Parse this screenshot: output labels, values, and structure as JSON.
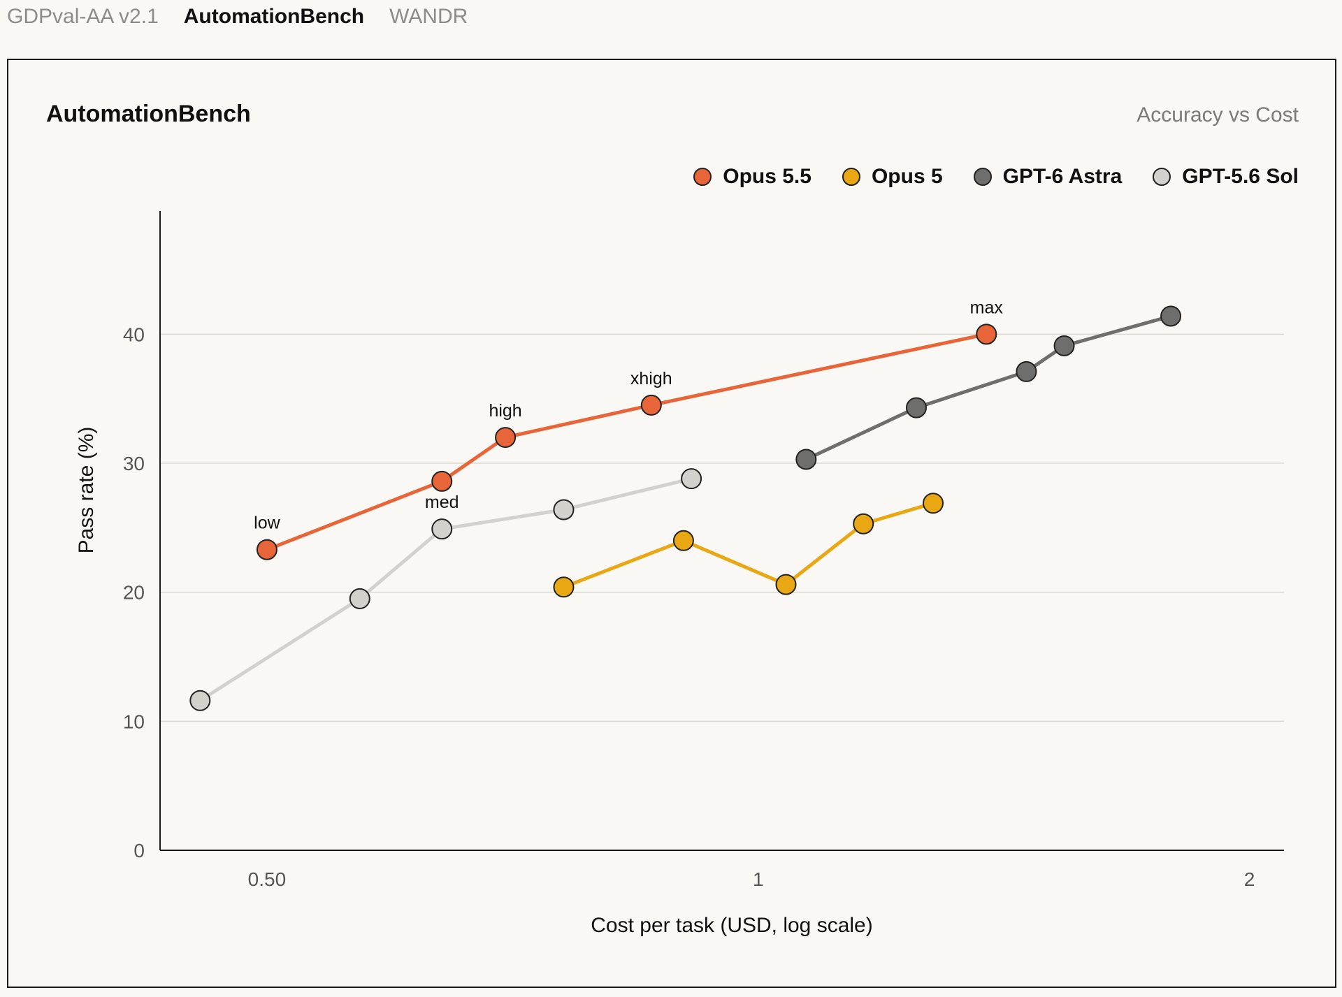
{
  "tabs": [
    {
      "label": "GDPval-AA v2.1",
      "active": false
    },
    {
      "label": "AutomationBench",
      "active": true
    },
    {
      "label": "WANDR",
      "active": false
    }
  ],
  "card": {
    "title": "AutomationBench",
    "subtitle": "Accuracy vs Cost"
  },
  "chart_data": {
    "type": "line",
    "xlabel": "Cost per task (USD, log scale)",
    "ylabel": "Pass rate (%)",
    "xscale": "log",
    "xlim": [
      0.43,
      2.1
    ],
    "ylim": [
      0,
      45
    ],
    "xticks": [
      {
        "value": 0.5,
        "label": "0.50"
      },
      {
        "value": 1,
        "label": "1"
      },
      {
        "value": 2,
        "label": "2"
      }
    ],
    "yticks": [
      0,
      10,
      20,
      30,
      40
    ],
    "grid": "horizontal",
    "legend_position": "top-right",
    "series": [
      {
        "name": "Opus 5.5",
        "color": "#e8653a",
        "points": [
          {
            "x": 0.5,
            "y": 23.3,
            "label": "low"
          },
          {
            "x": 0.64,
            "y": 28.6,
            "label": ""
          },
          {
            "x": 0.7,
            "y": 32.0,
            "label": "high"
          },
          {
            "x": 0.86,
            "y": 34.5,
            "label": "xhigh"
          },
          {
            "x": 1.38,
            "y": 40.0,
            "label": "max"
          }
        ]
      },
      {
        "name": "Opus 5",
        "color": "#eaa714",
        "points": [
          {
            "x": 0.76,
            "y": 20.4,
            "label": ""
          },
          {
            "x": 0.9,
            "y": 24.0,
            "label": ""
          },
          {
            "x": 1.04,
            "y": 20.6,
            "label": ""
          },
          {
            "x": 1.16,
            "y": 25.3,
            "label": ""
          },
          {
            "x": 1.28,
            "y": 26.9,
            "label": ""
          }
        ]
      },
      {
        "name": "GPT-6 Astra",
        "color": "#6e6e6c",
        "points": [
          {
            "x": 1.07,
            "y": 30.3,
            "label": ""
          },
          {
            "x": 1.25,
            "y": 34.3,
            "label": ""
          },
          {
            "x": 1.46,
            "y": 37.1,
            "label": ""
          },
          {
            "x": 1.54,
            "y": 39.1,
            "label": ""
          },
          {
            "x": 1.79,
            "y": 41.4,
            "label": ""
          }
        ]
      },
      {
        "name": "GPT-5.6 Sol",
        "color": "#d2d1cb",
        "points": [
          {
            "x": 0.455,
            "y": 11.6,
            "label": ""
          },
          {
            "x": 0.57,
            "y": 19.5,
            "label": ""
          },
          {
            "x": 0.64,
            "y": 24.9,
            "label": "med"
          },
          {
            "x": 0.76,
            "y": 26.4,
            "label": ""
          },
          {
            "x": 0.91,
            "y": 28.8,
            "label": ""
          }
        ]
      }
    ]
  }
}
